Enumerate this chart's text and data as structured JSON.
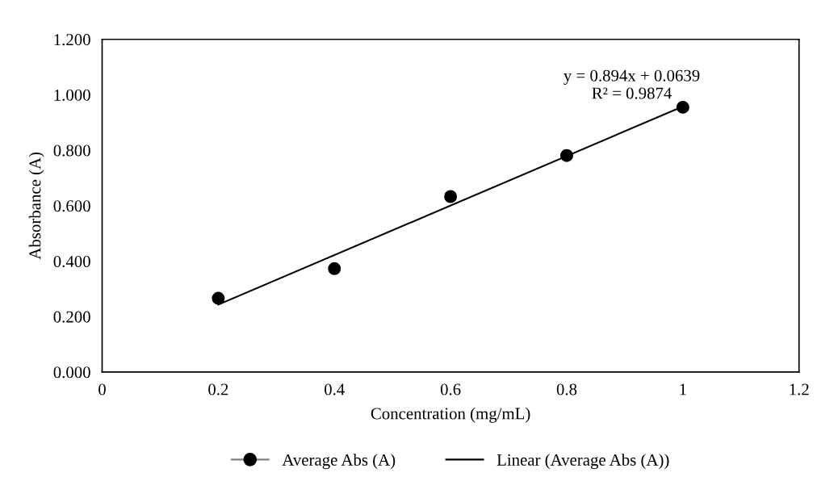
{
  "chart_data": {
    "type": "scatter",
    "xlabel": "Concentration (mg/mL)",
    "ylabel": "Absorbance (A)",
    "xlim": [
      0,
      1.2
    ],
    "xticks": [
      0,
      0.2,
      0.4,
      0.6,
      0.8,
      1,
      1.2
    ],
    "ylim": [
      0,
      1.2
    ],
    "yticks": [
      {
        "value": 0,
        "label": "0.000"
      },
      {
        "value": 0.2,
        "label": "0.200"
      },
      {
        "value": 0.4,
        "label": "0.400"
      },
      {
        "value": 0.6,
        "label": "0.600"
      },
      {
        "value": 0.8,
        "label": "0.800"
      },
      {
        "value": 1.0,
        "label": "1.000"
      },
      {
        "value": 1.2,
        "label": "1.200"
      }
    ],
    "x": [
      0.2,
      0.4,
      0.6,
      0.8,
      1.0
    ],
    "series": [
      {
        "name": "Average Abs (A)",
        "color": "#000000",
        "marker": "circle",
        "values": [
          0.266,
          0.373,
          0.633,
          0.781,
          0.955
        ]
      },
      {
        "name": "Linear (Average Abs (A))",
        "type": "line",
        "color": "#000000",
        "marker": "none",
        "x": [
          0.2,
          1.0
        ],
        "values": [
          0.243,
          0.958
        ]
      }
    ],
    "annotations": [
      "y = 0.894x + 0.0639\nR² = 0.9874"
    ],
    "grid": false,
    "legend": "bottom"
  }
}
